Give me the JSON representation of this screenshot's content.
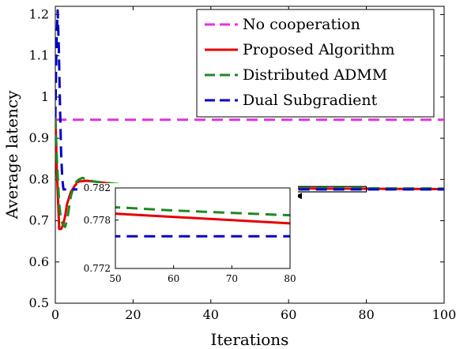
{
  "chart_data": {
    "type": "line",
    "title": "",
    "xlabel": "Iterations",
    "ylabel": "Average latency",
    "xlim": [
      0,
      100
    ],
    "ylim": [
      0.5,
      1.22
    ],
    "x_ticks": [
      0,
      20,
      40,
      60,
      80,
      100
    ],
    "y_ticks": [
      0.5,
      0.6,
      0.7,
      0.8,
      0.9,
      1,
      1.1,
      1.2
    ],
    "grid": false,
    "legend_position": "top-right",
    "series": [
      {
        "name": "No cooperation",
        "color": "#e632e6",
        "dash": "dashed",
        "x": [
          0,
          100
        ],
        "y": [
          0.945,
          0.945
        ]
      },
      {
        "name": "Proposed Algorithm",
        "color": "#e60000",
        "dash": "solid",
        "x": [
          0,
          0.4,
          1,
          1.5,
          2,
          2.5,
          3,
          4,
          5,
          6,
          8,
          10,
          15,
          20,
          30,
          40,
          50,
          60,
          70,
          80,
          90,
          100
        ],
        "y": [
          0.96,
          0.82,
          0.68,
          0.68,
          0.69,
          0.71,
          0.74,
          0.77,
          0.785,
          0.795,
          0.797,
          0.795,
          0.789,
          0.785,
          0.781,
          0.7795,
          0.7788,
          0.7784,
          0.778,
          0.7776,
          0.7772,
          0.7768
        ]
      },
      {
        "name": "Distributed ADMM",
        "color": "#1f8a1f",
        "dash": "dashed",
        "x": [
          0,
          0.4,
          1,
          1.5,
          2,
          2.5,
          3,
          4,
          5,
          6,
          7,
          8,
          10,
          15,
          20,
          30,
          40,
          50,
          60,
          70,
          80,
          90,
          100
        ],
        "y": [
          0.95,
          0.85,
          0.74,
          0.7,
          0.69,
          0.685,
          0.7,
          0.76,
          0.79,
          0.8,
          0.804,
          0.8,
          0.795,
          0.79,
          0.786,
          0.782,
          0.7802,
          0.7796,
          0.7792,
          0.7789,
          0.7786,
          0.7784,
          0.7782
        ]
      },
      {
        "name": "Dual Subgradient",
        "color": "#0000c8",
        "dash": "dashed",
        "x": [
          0,
          0.3,
          0.6,
          0.9,
          1.2,
          1.5,
          1.8,
          2.1,
          2.5,
          3,
          5,
          10,
          20,
          40,
          60,
          80,
          100
        ],
        "y": [
          0.95,
          1.13,
          1.21,
          1.12,
          0.98,
          0.86,
          0.8,
          0.776,
          0.776,
          0.776,
          0.776,
          0.776,
          0.776,
          0.776,
          0.776,
          0.776,
          0.776
        ]
      }
    ],
    "inset": {
      "xlim": [
        50,
        80
      ],
      "ylim": [
        0.772,
        0.782
      ],
      "x_ticks": [
        50,
        60,
        70,
        80
      ],
      "y_ticks": [
        0.772,
        0.778,
        0.782
      ],
      "y_tick_labels": [
        "0.772",
        "0.778",
        "0.782"
      ]
    }
  }
}
